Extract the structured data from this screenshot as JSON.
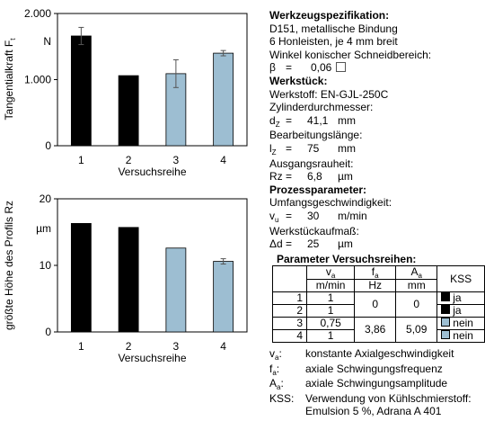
{
  "chart_data": [
    {
      "type": "bar",
      "ylabel": "Tangentialkraft F",
      "ylabel_sub": "t",
      "unit": "N",
      "xlabel": "Versuchsreihe",
      "categories": [
        "1",
        "2",
        "3",
        "4"
      ],
      "values": [
        1660,
        1060,
        1090,
        1400
      ],
      "errors": [
        130,
        0,
        210,
        40
      ],
      "colors": [
        "#000000",
        "#000000",
        "#9dbed2",
        "#9dbed2"
      ],
      "ylim": [
        0,
        2000
      ],
      "ytick_labels": [
        "0",
        "1.000",
        "2.000"
      ],
      "ytick_values": [
        0,
        1000,
        2000
      ]
    },
    {
      "type": "bar",
      "ylabel": "größte Höhe des Profils Rz",
      "unit": "µm",
      "xlabel": "Versuchsreihe",
      "categories": [
        "1",
        "2",
        "3",
        "4"
      ],
      "values": [
        16.3,
        15.7,
        12.6,
        10.6
      ],
      "errors": [
        0,
        0,
        0,
        0.4
      ],
      "colors": [
        "#000000",
        "#000000",
        "#9dbed2",
        "#9dbed2"
      ],
      "ylim": [
        0,
        20
      ],
      "ytick_labels": [
        "0",
        "10",
        "20"
      ],
      "ytick_values": [
        0,
        10,
        20
      ]
    }
  ],
  "info": {
    "werkzeug_title": "Werkzeugspezifikation:",
    "werkzeug_line1": "D151, metallische Bindung",
    "werkzeug_line2": "6 Honleisten, je 4 mm breit",
    "werkzeug_line3": "Winkel konischer Schneidbereich:",
    "beta_sym": "β",
    "beta_eq": "=",
    "beta_val": "0,06",
    "werkstueck_title": "Werkstück:",
    "werkstoff": "Werkstoff: EN-GJL-250C",
    "zyl_label": "Zylinderdurchmesser:",
    "dz_sym": "d",
    "dz_sub": "Z",
    "dz_eq": "=",
    "dz_val": "41,1",
    "dz_unit": "mm",
    "bl_label": "Bearbeitungslänge:",
    "lz_sym": "l",
    "lz_sub": "Z",
    "lz_eq": "=",
    "lz_val": "75",
    "lz_unit": "mm",
    "ar_label": "Ausgangsrauheit:",
    "rz_sym": "Rz",
    "rz_eq": "=",
    "rz_val": "6,8",
    "rz_unit": "µm",
    "prozess_title": "Prozessparameter:",
    "ug_label": "Umfangsgeschwindigkeit:",
    "vu_sym": "v",
    "vu_sub": "u",
    "vu_eq": "=",
    "vu_val": "30",
    "vu_unit": "m/min",
    "wa_label": "Werkstückaufmaß:",
    "dd_sym": "Δd",
    "dd_eq": "=",
    "dd_val": "25",
    "dd_unit": "µm"
  },
  "table": {
    "title": "Parameter Versuchsreihen:",
    "va_head": "v",
    "va_sub": "a",
    "fa_head": "f",
    "fa_sub": "a",
    "aa_head": "A",
    "aa_sub": "a",
    "kss_head": "KSS",
    "va_unit": "m/min",
    "fa_unit": "Hz",
    "aa_unit": "mm",
    "rows": [
      {
        "id": "1",
        "va": "1",
        "kss": "ja",
        "kss_color": "#000000"
      },
      {
        "id": "2",
        "va": "1",
        "kss": "ja",
        "kss_color": "#000000"
      },
      {
        "id": "3",
        "va": "0,75",
        "kss": "nein",
        "kss_color": "#9dbed2"
      },
      {
        "id": "4",
        "va": "1",
        "kss": "nein",
        "kss_color": "#9dbed2"
      }
    ],
    "fa_r12": "0",
    "aa_r12": "0",
    "fa_r34": "3,86",
    "aa_r34": "5,09"
  },
  "legend": {
    "va_key": "v",
    "va_key_sub": "a",
    "va_text": "konstante Axialgeschwindigkeit",
    "fa_key": "f",
    "fa_key_sub": "a",
    "fa_text": "axiale Schwingungsfrequenz",
    "aa_key": "A",
    "aa_key_sub": "a",
    "aa_text": "axiale Schwingungsamplitude",
    "kss_key": "KSS:",
    "kss_text1": "Verwendung von Kühlschmierstoff:",
    "kss_text2": "Emulsion 5 %, Adrana A 401"
  }
}
